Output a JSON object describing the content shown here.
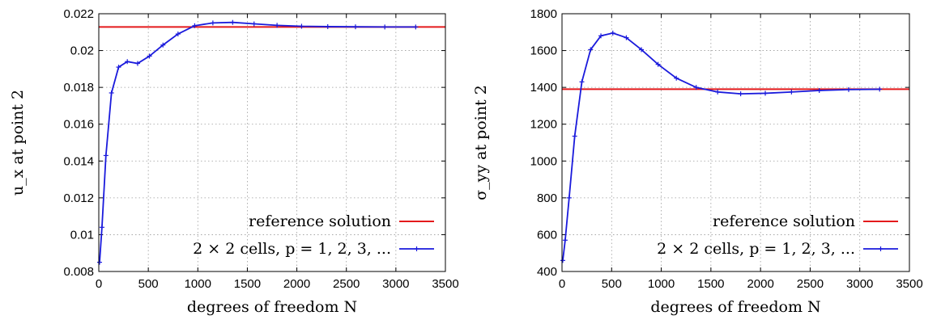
{
  "chart_data": [
    {
      "type": "line",
      "title": "",
      "xlabel": "degrees of freedom N",
      "ylabel": "u_x at point 2",
      "xlim": [
        0,
        3500
      ],
      "ylim": [
        0.008,
        0.022
      ],
      "xticks": [
        "0",
        "500",
        "1000",
        "1500",
        "2000",
        "2500",
        "3000",
        "3500"
      ],
      "yticks": [
        "0.008",
        "0.01",
        "0.012",
        "0.014",
        "0.016",
        "0.018",
        "0.02",
        "0.022"
      ],
      "grid": true,
      "legend_position": "bottom-right",
      "series": [
        {
          "name": "reference solution",
          "color": "#e41a1c",
          "type": "hline",
          "y": 0.02128
        },
        {
          "name": "2 × 2 cells, p = 1, 2, 3, ...",
          "color": "#1a1adc",
          "type": "line-points",
          "x": [
            8,
            32,
            72,
            128,
            200,
            288,
            392,
            512,
            648,
            800,
            968,
            1152,
            1352,
            1568,
            1800,
            2048,
            2312,
            2592,
            2888,
            3200
          ],
          "y": [
            0.0085,
            0.0104,
            0.0143,
            0.0177,
            0.0191,
            0.0194,
            0.0193,
            0.0197,
            0.0203,
            0.0209,
            0.02135,
            0.0215,
            0.02153,
            0.02145,
            0.02137,
            0.02132,
            0.0213,
            0.02129,
            0.02128,
            0.02128
          ]
        }
      ]
    },
    {
      "type": "line",
      "title": "",
      "xlabel": "degrees of freedom N",
      "ylabel": "σ_yy at point 2",
      "xlim": [
        0,
        3500
      ],
      "ylim": [
        400,
        1800
      ],
      "xticks": [
        "0",
        "500",
        "1000",
        "1500",
        "2000",
        "2500",
        "3000",
        "3500"
      ],
      "yticks": [
        "400",
        "600",
        "800",
        "1000",
        "1200",
        "1400",
        "1600",
        "1800"
      ],
      "grid": true,
      "legend_position": "bottom-right",
      "series": [
        {
          "name": "reference solution",
          "color": "#e41a1c",
          "type": "hline",
          "y": 1390
        },
        {
          "name": "2 × 2 cells, p = 1, 2, 3, ...",
          "color": "#1a1adc",
          "type": "line-points",
          "x": [
            8,
            32,
            72,
            128,
            200,
            288,
            392,
            512,
            648,
            800,
            968,
            1152,
            1352,
            1568,
            1800,
            2048,
            2312,
            2592,
            2888,
            3200
          ],
          "y": [
            460,
            570,
            800,
            1135,
            1430,
            1605,
            1680,
            1695,
            1670,
            1605,
            1525,
            1450,
            1400,
            1375,
            1365,
            1368,
            1375,
            1383,
            1388,
            1390
          ]
        }
      ]
    }
  ]
}
